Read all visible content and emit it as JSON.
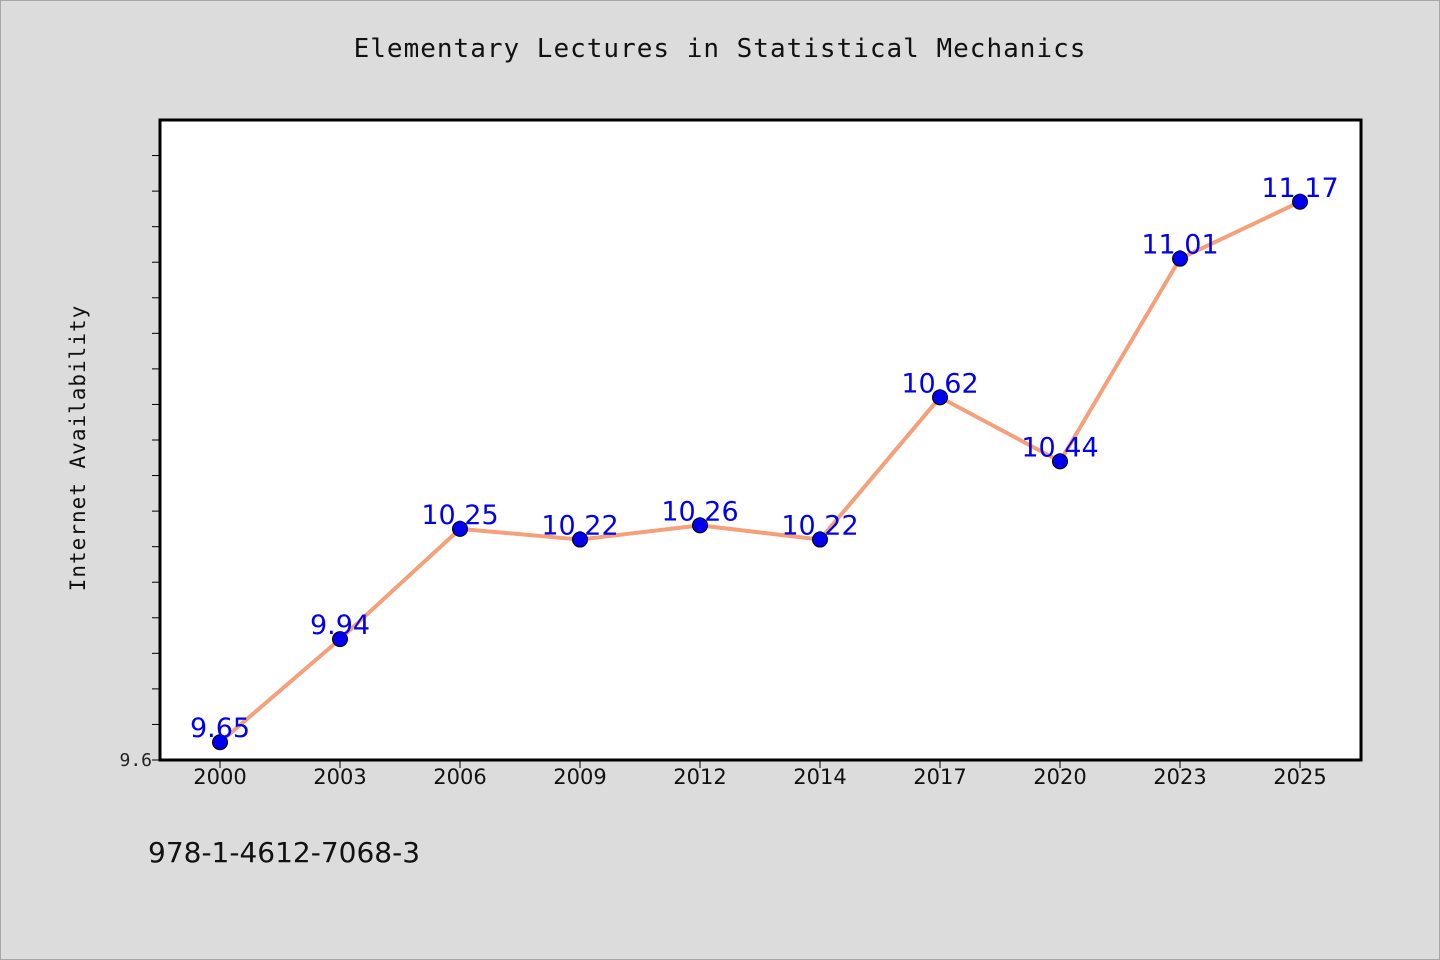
{
  "chart_data": {
    "type": "line",
    "title": "Elementary Lectures in Statistical Mechanics",
    "xlabel": "",
    "ylabel": "Internet Availability",
    "categories": [
      "2000",
      "2003",
      "2006",
      "2009",
      "2012",
      "2014",
      "2017",
      "2020",
      "2023",
      "2025"
    ],
    "series": [
      {
        "values": [
          9.65,
          9.94,
          10.25,
          10.22,
          10.26,
          10.22,
          10.62,
          10.44,
          11.01,
          11.17
        ],
        "data_labels": [
          "9.65",
          "9.94",
          "10.25",
          "10.22",
          "10.26",
          "10.22",
          "10.62",
          "10.44",
          "11.01",
          "11.17"
        ]
      }
    ],
    "ylim": [
      9.6,
      11.4
    ],
    "y_tick_step": 0.1,
    "y_tick_labels": [
      {
        "value": 9.6,
        "label": "9.6"
      }
    ],
    "grid": false,
    "legend": "none",
    "colors": {
      "line": "#f4a07a",
      "marker": "#0000ee",
      "data_label": "#0000ee",
      "background": "#dcdcdc",
      "plot_background": "#ffffff"
    }
  },
  "footer": {
    "isbn": "978-1-4612-7068-3"
  }
}
